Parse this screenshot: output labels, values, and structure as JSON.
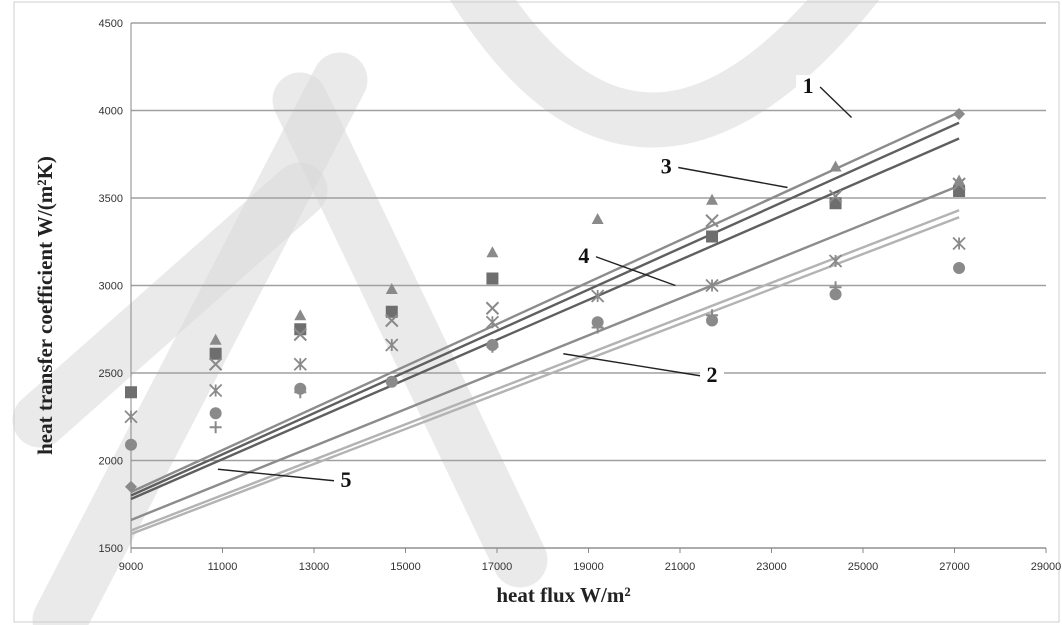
{
  "chart_data": {
    "type": "scatter",
    "xlabel": "heat flux W/m²",
    "ylabel": "heat transfer coefficient W/(m²K)",
    "xlim": [
      9000,
      29000
    ],
    "ylim": [
      1500,
      4500
    ],
    "x_ticks": [
      9000,
      11000,
      13000,
      15000,
      17000,
      19000,
      21000,
      23000,
      25000,
      27000,
      29000
    ],
    "y_ticks": [
      1500,
      2000,
      2500,
      3000,
      3500,
      4000,
      4500
    ],
    "grid": "horizontal",
    "colors": {
      "markers": "#8a8a8a",
      "markers_dark": "#6e6e6e",
      "line_dark": "#5f5f5f",
      "line_mid": "#8c8c8c",
      "line_light": "#b3b3b3",
      "grid": "#a0a0a0",
      "watermark": "#d9d9d9"
    },
    "series": [
      {
        "marker": "diamond",
        "x": [
          9000,
          27100
        ],
        "y": [
          1850,
          3980
        ]
      },
      {
        "marker": "square",
        "x": [
          9000,
          10850,
          12700,
          14700,
          16900,
          21700,
          24400,
          27100
        ],
        "y": [
          2390,
          2610,
          2750,
          2850,
          3040,
          3280,
          3470,
          3540
        ]
      },
      {
        "marker": "triangle",
        "x": [
          10850,
          12700,
          14700,
          16900,
          19200,
          21700,
          24400,
          27100
        ],
        "y": [
          2690,
          2830,
          2980,
          3190,
          3380,
          3490,
          3680,
          3600
        ]
      },
      {
        "marker": "x",
        "x": [
          10850,
          12700,
          14700,
          16900,
          21700,
          24400,
          27100
        ],
        "y": [
          2550,
          2720,
          2800,
          2870,
          3370,
          3510,
          3580
        ]
      },
      {
        "marker": "asterisk",
        "x": [
          9000,
          10850,
          12700,
          14700,
          16900,
          19200,
          21700,
          24400,
          27100
        ],
        "y": [
          2250,
          2400,
          2550,
          2660,
          2790,
          2940,
          3000,
          3140,
          3240
        ]
      },
      {
        "marker": "circle",
        "x": [
          9000,
          10850,
          12700,
          14700,
          16900,
          19200,
          21700,
          24400,
          27100
        ],
        "y": [
          2090,
          2270,
          2410,
          2450,
          2660,
          2790,
          2800,
          2950,
          3100
        ]
      },
      {
        "marker": "plus",
        "x": [
          10850,
          12700,
          16900,
          19200,
          21700,
          24400
        ],
        "y": [
          2190,
          2390,
          2650,
          2760,
          2830,
          2990
        ]
      }
    ],
    "lines": [
      {
        "label": "1",
        "shade": "line_mid",
        "x": [
          9000,
          27100
        ],
        "y": [
          1820,
          3990
        ]
      },
      {
        "label": "",
        "shade": "line_dark",
        "x": [
          9000,
          27100
        ],
        "y": [
          1800,
          3930
        ]
      },
      {
        "label": "3",
        "shade": "line_dark",
        "x": [
          9000,
          27100
        ],
        "y": [
          1780,
          3840
        ]
      },
      {
        "label": "4",
        "shade": "line_mid",
        "x": [
          9000,
          27100
        ],
        "y": [
          1660,
          3570
        ]
      },
      {
        "label": "5",
        "shade": "line_light",
        "x": [
          9000,
          27100
        ],
        "y": [
          1600,
          3430
        ]
      },
      {
        "label": "2",
        "shade": "line_light",
        "x": [
          9000,
          27100
        ],
        "y": [
          1580,
          3390
        ]
      }
    ],
    "annotations": [
      {
        "text": "1",
        "x": 23800,
        "y": 4100,
        "tx": 24750,
        "ty": 3960
      },
      {
        "text": "3",
        "x": 20700,
        "y": 3640,
        "tx": 23350,
        "ty": 3560
      },
      {
        "text": "4",
        "x": 18900,
        "y": 3130,
        "tx": 20900,
        "ty": 3000
      },
      {
        "text": "2",
        "x": 21700,
        "y": 2450,
        "tx": 18450,
        "ty": 2610
      },
      {
        "text": "5",
        "x": 13700,
        "y": 1850,
        "tx": 10900,
        "ty": 1950
      }
    ]
  }
}
